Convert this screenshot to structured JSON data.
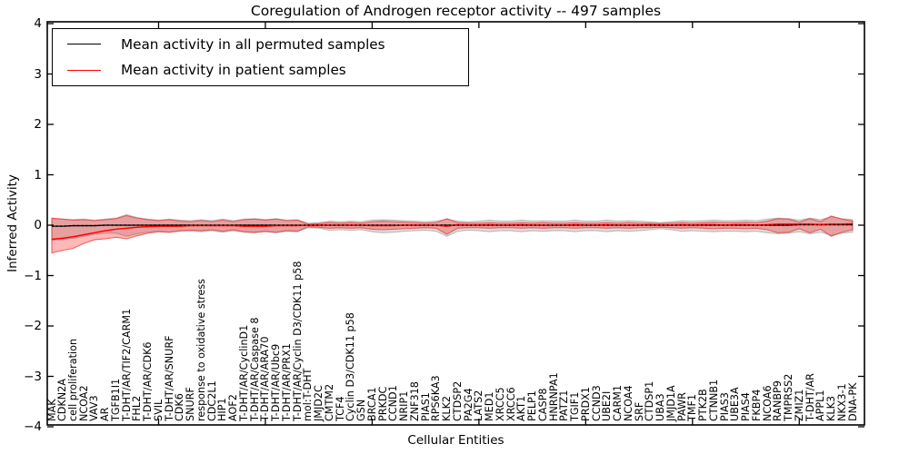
{
  "figure": {
    "title": "Coregulation of Androgen receptor activity -- 497 samples",
    "xlabel": "Cellular Entities",
    "ylabel": "Inferred Activity"
  },
  "legend": {
    "entries": [
      {
        "label": "Mean activity in all permuted samples",
        "color": "#000000"
      },
      {
        "label": "Mean activity in patient samples",
        "color": "#ff0000"
      }
    ]
  },
  "chart_data": {
    "type": "line",
    "title": "Coregulation of Androgen receptor activity -- 497 samples",
    "xlabel": "Cellular Entities",
    "ylabel": "Inferred Activity",
    "ylim": [
      -4,
      4
    ],
    "grid": false,
    "legend_position": "upper left",
    "yticks": [
      {
        "v": 4,
        "label": "4"
      },
      {
        "v": 3,
        "label": "3"
      },
      {
        "v": 2,
        "label": "2"
      },
      {
        "v": 1,
        "label": "1"
      },
      {
        "v": 0,
        "label": "0"
      },
      {
        "v": -1,
        "label": "−1"
      },
      {
        "v": -2,
        "label": "−2"
      },
      {
        "v": -3,
        "label": "−3"
      },
      {
        "v": -4,
        "label": "−4"
      }
    ],
    "categories": [
      "MAK",
      "CDKN2A",
      "cell proliferation",
      "NCOA2",
      "VAV3",
      "AR",
      "TGFB1I1",
      "T-DHT/AR/TIF2/CARM1",
      "FHL2",
      "T-DHT/AR/CDK6",
      "SVIL",
      "T-DHT/AR/SNURF",
      "CDK6",
      "SNURF",
      "response to oxidative stress",
      "CDC2L1",
      "HIP1",
      "AOF2",
      "T-DHT/AR/CyclinD1",
      "T-DHT/AR/Caspase 8",
      "T-DHT/AR/ARA70",
      "T-DHT/AR/Ubc9",
      "T-DHT/AR/PRX1",
      "T-DHT/AR/Cyclin D3/CDK11 p58",
      "mol:T-DHT",
      "JMJD2C",
      "CMTM2",
      "TCF4",
      "Cyclin D3/CDK11 p58",
      "GSN",
      "BRCA1",
      "PRKDC",
      "CCND1",
      "NRIP1",
      "ZNF318",
      "PIAS1",
      "RPS6KA3",
      "KLK2",
      "CTDSP2",
      "PA2G4",
      "LATS2",
      "MED1",
      "XRCC5",
      "XRCC6",
      "AKT1",
      "PELP1",
      "CASP8",
      "HNRNPA1",
      "PATZ1",
      "TGIF1",
      "PRDX1",
      "CCND3",
      "UBE2I",
      "CARM1",
      "NCOA4",
      "SRF",
      "CTDSP1",
      "UBA3",
      "JMJD1A",
      "PAWR",
      "TMF1",
      "PTK2B",
      "CTNNB1",
      "PIAS3",
      "UBE3A",
      "PIAS4",
      "FKBP4",
      "NCOA6",
      "RANBP9",
      "TMPRSS2",
      "ZMIZ1",
      "T-DHT/AR",
      "APPL1",
      "KLK3",
      "NKX3-1",
      "DNA-PK"
    ],
    "series": [
      {
        "name": "Mean activity in all permuted samples",
        "color": "#000000",
        "band_fill": "rgba(0,0,0,0.13)",
        "band_edge": "rgba(0,0,0,0.22)",
        "values": [
          -0.02,
          -0.02,
          -0.01,
          -0.01,
          -0.01,
          0,
          0,
          0,
          0,
          0,
          0,
          0,
          0,
          0,
          0,
          0,
          0,
          0,
          0,
          0,
          0,
          0,
          0,
          0,
          0,
          0,
          0,
          0,
          0,
          0,
          0,
          0,
          0,
          0,
          0,
          0,
          0,
          0,
          0,
          0,
          0,
          0,
          0,
          0,
          0,
          0,
          0,
          0,
          0,
          0,
          0,
          0,
          0,
          0,
          0,
          0,
          0,
          0,
          0,
          0,
          0,
          0,
          0,
          0,
          0,
          0,
          0,
          0,
          0,
          0,
          0.01,
          0.01,
          0.01,
          0.01,
          0.01,
          0.01
        ],
        "band_upper": [
          0.13,
          0.12,
          0.11,
          0.12,
          0.1,
          0.12,
          0.14,
          0.21,
          0.15,
          0.12,
          0.1,
          0.12,
          0.1,
          0.09,
          0.11,
          0.09,
          0.12,
          0.09,
          0.12,
          0.13,
          0.11,
          0.13,
          0.1,
          0.11,
          0.04,
          0.05,
          0.08,
          0.07,
          0.08,
          0.07,
          0.1,
          0.11,
          0.1,
          0.09,
          0.08,
          0.07,
          0.08,
          0.12,
          0.08,
          0.07,
          0.08,
          0.1,
          0.08,
          0.08,
          0.1,
          0.08,
          0.09,
          0.08,
          0.08,
          0.1,
          0.08,
          0.08,
          0.1,
          0.08,
          0.09,
          0.08,
          0.07,
          0.05,
          0.07,
          0.09,
          0.08,
          0.09,
          0.1,
          0.09,
          0.09,
          0.1,
          0.09,
          0.12,
          0.14,
          0.13,
          0.1,
          0.14,
          0.11,
          0.17,
          0.13,
          0.11
        ],
        "band_lower": [
          -0.3,
          -0.28,
          -0.26,
          -0.22,
          -0.18,
          -0.16,
          -0.16,
          -0.22,
          -0.17,
          -0.14,
          -0.12,
          -0.14,
          -0.12,
          -0.11,
          -0.13,
          -0.11,
          -0.14,
          -0.11,
          -0.14,
          -0.15,
          -0.13,
          -0.15,
          -0.12,
          -0.13,
          -0.05,
          -0.06,
          -0.1,
          -0.09,
          -0.1,
          -0.09,
          -0.13,
          -0.15,
          -0.14,
          -0.12,
          -0.11,
          -0.1,
          -0.12,
          -0.22,
          -0.12,
          -0.1,
          -0.11,
          -0.13,
          -0.11,
          -0.11,
          -0.13,
          -0.11,
          -0.12,
          -0.11,
          -0.11,
          -0.13,
          -0.11,
          -0.11,
          -0.13,
          -0.11,
          -0.12,
          -0.11,
          -0.09,
          -0.07,
          -0.09,
          -0.12,
          -0.11,
          -0.12,
          -0.13,
          -0.12,
          -0.12,
          -0.13,
          -0.12,
          -0.15,
          -0.17,
          -0.16,
          -0.13,
          -0.17,
          -0.14,
          -0.2,
          -0.16,
          -0.14
        ]
      },
      {
        "name": "Mean activity in patient samples",
        "color": "#ff0000",
        "band_fill": "rgba(255,0,0,0.28)",
        "band_edge": "rgba(230,60,60,0.75)",
        "values": [
          -0.28,
          -0.26,
          -0.23,
          -0.19,
          -0.15,
          -0.11,
          -0.08,
          -0.06,
          -0.04,
          -0.03,
          -0.02,
          -0.02,
          -0.02,
          -0.01,
          -0.01,
          -0.01,
          -0.01,
          -0.01,
          -0.02,
          -0.02,
          -0.02,
          -0.01,
          -0.01,
          -0.01,
          0,
          0,
          0,
          0,
          0,
          0,
          -0.01,
          -0.01,
          -0.01,
          0,
          0,
          0,
          0,
          -0.02,
          0.01,
          0,
          0,
          0.01,
          0,
          0,
          0.01,
          0,
          0,
          0,
          0,
          0.01,
          0,
          0,
          0.01,
          0,
          0,
          0,
          0.01,
          0,
          0,
          0.01,
          0,
          0.01,
          0.01,
          0,
          0.01,
          0.01,
          0,
          0.01,
          0.02,
          0.02,
          0.02,
          0.02,
          0.01,
          0.02,
          0.02,
          0.03
        ],
        "band_upper": [
          0.14,
          0.12,
          0.1,
          0.11,
          0.09,
          0.11,
          0.13,
          0.19,
          0.14,
          0.11,
          0.09,
          0.11,
          0.08,
          0.07,
          0.09,
          0.07,
          0.1,
          0.07,
          0.11,
          0.12,
          0.1,
          0.12,
          0.09,
          0.1,
          0.02,
          0.03,
          0.05,
          0.04,
          0.05,
          0.04,
          0.07,
          0.08,
          0.07,
          0.06,
          0.05,
          0.04,
          0.05,
          0.13,
          0.05,
          0.04,
          0.04,
          0.05,
          0.04,
          0.04,
          0.05,
          0.04,
          0.05,
          0.04,
          0.04,
          0.05,
          0.04,
          0.04,
          0.05,
          0.04,
          0.05,
          0.04,
          0.04,
          0.03,
          0.04,
          0.05,
          0.04,
          0.05,
          0.06,
          0.05,
          0.05,
          0.06,
          0.05,
          0.08,
          0.13,
          0.12,
          0.06,
          0.13,
          0.07,
          0.18,
          0.12,
          0.08
        ],
        "band_lower": [
          -0.55,
          -0.5,
          -0.46,
          -0.36,
          -0.29,
          -0.27,
          -0.24,
          -0.27,
          -0.21,
          -0.16,
          -0.13,
          -0.14,
          -0.11,
          -0.1,
          -0.11,
          -0.09,
          -0.12,
          -0.09,
          -0.13,
          -0.14,
          -0.12,
          -0.14,
          -0.11,
          -0.12,
          -0.03,
          -0.04,
          -0.06,
          -0.05,
          -0.06,
          -0.05,
          -0.08,
          -0.09,
          -0.08,
          -0.07,
          -0.06,
          -0.05,
          -0.06,
          -0.18,
          -0.06,
          -0.05,
          -0.05,
          -0.06,
          -0.05,
          -0.05,
          -0.06,
          -0.05,
          -0.06,
          -0.05,
          -0.05,
          -0.06,
          -0.05,
          -0.05,
          -0.06,
          -0.05,
          -0.06,
          -0.05,
          -0.05,
          -0.04,
          -0.05,
          -0.06,
          -0.05,
          -0.06,
          -0.07,
          -0.06,
          -0.06,
          -0.07,
          -0.06,
          -0.09,
          -0.15,
          -0.14,
          -0.07,
          -0.15,
          -0.08,
          -0.22,
          -0.14,
          -0.09
        ]
      }
    ]
  }
}
